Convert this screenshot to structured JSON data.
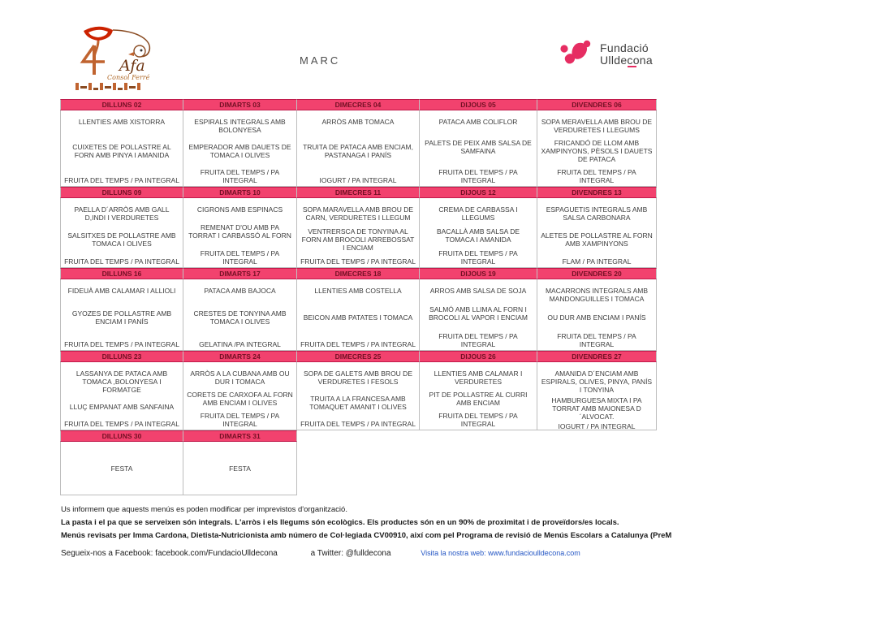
{
  "page": {
    "title": "MARC"
  },
  "logos": {
    "afa": {
      "name": "Afa",
      "subtitle": "Consol Ferré"
    },
    "fundacio": {
      "line1": "Fundació",
      "line2": "Ulldecona"
    }
  },
  "colors": {
    "header_pink": "#f2426e",
    "header_text": "#731024",
    "logo_pink": "#e62d62",
    "afa_orange": "#c0632f",
    "afa_red": "#cc2200",
    "link_blue": "#2456c4"
  },
  "menu": {
    "weeks": [
      {
        "days": [
          {
            "label": "DILLUNS 02",
            "courses": [
              "LLENTIES AMB XISTORRA",
              "CUIXETES DE POLLASTRE AL FORN AMB PINYA I AMANIDA",
              "FRUITA DEL TEMPS / PA INTEGRAL"
            ]
          },
          {
            "label": "DIMARTS 03",
            "courses": [
              "ESPIRALS INTEGRALS AMB BOLONYESA",
              "EMPERADOR AMB DAUETS DE TOMACA I OLIVES",
              "FRUITA DEL TEMPS / PA INTEGRAL"
            ]
          },
          {
            "label": "DIMECRES 04",
            "courses": [
              "ARRÒS AMB TOMACA",
              "TRUITA DE PATACA AMB ENCIAM, PASTANAGA I PANÍS",
              "IOGURT / PA INTEGRAL"
            ]
          },
          {
            "label": "DIJOUS 05",
            "courses": [
              "PATACA AMB COLIFLOR",
              "PALETS DE PEIX AMB SALSA DE SAMFAINA",
              "FRUITA DEL TEMPS / PA INTEGRAL"
            ]
          },
          {
            "label": "DIVENDRES 06",
            "courses": [
              "SOPA MERAVELLA AMB BROU DE VERDURETES I LLEGUMS",
              "FRICANDÓ DE LLOM AMB XAMPINYONS, PÈSOLS I DAUETS DE PATACA",
              "FRUITA DEL TEMPS / PA INTEGRAL"
            ]
          }
        ]
      },
      {
        "days": [
          {
            "label": "DILLUNS 09",
            "courses": [
              "PAELLA D´ARRÒS AMB GALL D,INDI I VERDURETES",
              "SALSITXES DE POLLASTRE AMB TOMACA I OLIVES",
              "FRUITA DEL TEMPS / PA INTEGRAL"
            ]
          },
          {
            "label": "DIMARTS 10",
            "courses": [
              "CIGRONS AMB ESPINACS",
              "REMENAT D'OU AMB PA TORRAT I CARBASSÓ AL FORN",
              "FRUITA DEL TEMPS / PA INTEGRAL"
            ]
          },
          {
            "label": "DIMECRES 11",
            "courses": [
              "SOPA MARAVELLA AMB BROU DE CARN, VERDURETES I LLEGUM",
              "VENTRERSCA DE TONYINA AL FORN AM BROCOLI ARREBOSSAT I ENCIAM",
              "FRUITA DEL TEMPS / PA INTEGRAL"
            ]
          },
          {
            "label": "DIJOUS 12",
            "courses": [
              "CREMA DE CARBASSA I LLEGUMS",
              "BACALLÀ  AMB SALSA DE TOMACA I AMANIDA",
              "FRUITA DEL TEMPS / PA INTEGRAL"
            ]
          },
          {
            "label": "DIVENDRES 13",
            "courses": [
              "ESPAGUETIS  INTEGRALS AMB SALSA CARBONARA",
              "ALETES DE POLLASTRE AL FORN AMB XAMPINYONS",
              "FLAM / PA INTEGRAL"
            ]
          }
        ]
      },
      {
        "days": [
          {
            "label": "DILLUNS 16",
            "courses": [
              "FIDEUÀ AMB CALAMAR I ALLIOLI",
              "GYOZES DE POLLASTRE AMB ENCIAM I PANÍS",
              "FRUITA DEL TEMPS / PA INTEGRAL"
            ]
          },
          {
            "label": "DIMARTS 17",
            "courses": [
              "PATACA AMB BAJOCA",
              "CRESTES DE TONYINA AMB TOMACA I OLIVES",
              "GELATINA  /PA INTEGRAL"
            ]
          },
          {
            "label": "DIMECRES 18",
            "courses": [
              "LLENTIES AMB  COSTELLA",
              "BEICON AMB PATATES I TOMACA",
              "FRUITA DEL TEMPS / PA INTEGRAL"
            ]
          },
          {
            "label": "DIJOUS 19",
            "courses": [
              "ARROS AMB SALSA DE SOJA",
              "SALMÓ AMB LLIMA AL FORN I BROCOLI AL VAPOR I ENCIAM",
              "FRUITA DEL TEMPS / PA INTEGRAL"
            ]
          },
          {
            "label": "DIVENDRES 20",
            "courses": [
              "MACARRONS INTEGRALS AMB MANDONGUILLES I TOMACA",
              "OU DUR AMB ENCIAM I PANÍS",
              "FRUITA DEL TEMPS / PA INTEGRAL"
            ]
          }
        ]
      },
      {
        "days": [
          {
            "label": "DILLUNS 23",
            "courses": [
              "LASSANYA DE PATACA AMB TOMACA ,BOLONYESA I FORMATGE",
              "LLUÇ EMPANAT AMB SANFAINA",
              "FRUITA DEL TEMPS / PA INTEGRAL"
            ]
          },
          {
            "label": "DIMARTS 24",
            "courses": [
              "ARRÒS A LA CUBANA AMB OU DUR I TOMACA",
              "CORETS DE CARXOFA AL FORN AMB ENCIAM I OLIVES",
              "FRUITA DEL TEMPS / PA INTEGRAL"
            ]
          },
          {
            "label": "DIMECRES 25",
            "courses": [
              "SOPA DE GALETS AMB BROU DE VERDURETES I FESOLS",
              "TRUITA A LA FRANCESA  AMB TOMAQUET AMANIT I OLIVES",
              "FRUITA DEL TEMPS / PA INTEGRAL"
            ]
          },
          {
            "label": "DIJOUS 26",
            "courses": [
              "LLENTIES AMB CALAMAR I VERDURETES",
              "PIT DE POLLASTRE AL CURRI AMB ENCIAM",
              "FRUITA DEL TEMPS / PA INTEGRAL"
            ]
          },
          {
            "label": "DIVENDRES 27",
            "courses": [
              "AMANIDA D´ENCIAM AMB ESPIRALS, OLIVES, PINYA, PANÍS I TONYINA",
              "HAMBURGUESA MIXTA I PA TORRAT AMB MAIONESA D´ALVOCAT.",
              "IOGURT / PA INTEGRAL"
            ]
          }
        ]
      },
      {
        "days": [
          {
            "label": "DILLUNS 30",
            "courses": [
              "",
              "FESTA",
              ""
            ]
          },
          {
            "label": "DIMARTS 31",
            "courses": [
              "",
              "FESTA",
              ""
            ]
          }
        ]
      }
    ]
  },
  "footer": {
    "line1": "Us informem que aquests menús es poden modificar per imprevistos d'organització.",
    "line2": "La pasta i el pa que se serveixen són integrals. L'arròs i els llegums són ecològics. Els productes són en un 90% de proximitat i de proveïdors/es locals.",
    "line3": "Menús revisats per Imma Cardona, Dietista-Nutricionista amb número de Col·legiada CV00910, així com pel Programa de revisió de Menús Escolars a Catalunya (PreM",
    "social": {
      "facebook": "Segueix-nos a Facebook: facebook.com/FundacioUlldecona",
      "twitter": "a Twitter: @fulldecona",
      "web": "Visita la nostra web: www.fundacioulldecona.com"
    }
  }
}
